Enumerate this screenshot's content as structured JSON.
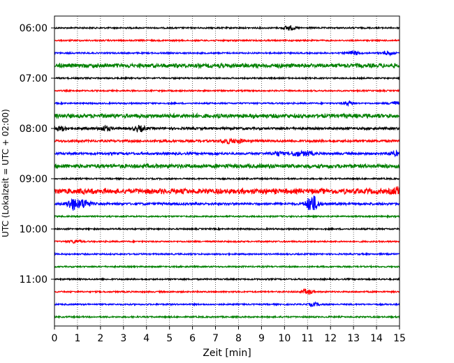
{
  "chart_data": {
    "type": "line",
    "title": "",
    "xlabel": "Zeit  [min]",
    "ylabel": "UTC (Lokalzeit = UTC + 02:00)",
    "xlim": [
      0,
      15
    ],
    "x_ticks": [
      0,
      1,
      2,
      3,
      4,
      5,
      6,
      7,
      8,
      9,
      10,
      11,
      12,
      13,
      14,
      15
    ],
    "x_tick_labels": [
      "0",
      "1",
      "2",
      "3",
      "4",
      "5",
      "6",
      "7",
      "8",
      "9",
      "10",
      "11",
      "12",
      "13",
      "14",
      "15"
    ],
    "y_tick_labels": [
      "06:00",
      "07:00",
      "08:00",
      "09:00",
      "10:00",
      "11:00"
    ],
    "grid": "vertical dotted at each minute",
    "trace_colors": [
      "#000000",
      "#ff0000",
      "#0000ff",
      "#008000"
    ],
    "series": [
      {
        "start": "06:00",
        "color": "#000000",
        "noise": "low",
        "events": [
          [
            10.2,
            0.8
          ]
        ]
      },
      {
        "start": "06:15",
        "color": "#ff0000",
        "noise": "low",
        "events": []
      },
      {
        "start": "06:30",
        "color": "#0000ff",
        "noise": "low",
        "events": [
          [
            13.0,
            0.7
          ],
          [
            14.5,
            0.6
          ]
        ]
      },
      {
        "start": "06:45",
        "color": "#008000",
        "noise": "high",
        "events": []
      },
      {
        "start": "07:00",
        "color": "#000000",
        "noise": "low",
        "events": []
      },
      {
        "start": "07:15",
        "color": "#ff0000",
        "noise": "low",
        "events": []
      },
      {
        "start": "07:30",
        "color": "#0000ff",
        "noise": "low",
        "events": [
          [
            12.8,
            0.6
          ],
          [
            14.8,
            0.6
          ]
        ]
      },
      {
        "start": "07:45",
        "color": "#008000",
        "noise": "high",
        "events": []
      },
      {
        "start": "08:00",
        "color": "#000000",
        "noise": "medium",
        "events": [
          [
            0.3,
            0.7
          ],
          [
            2.2,
            0.8
          ],
          [
            3.7,
            0.9
          ]
        ]
      },
      {
        "start": "08:15",
        "color": "#ff0000",
        "noise": "medium",
        "events": [
          [
            7.5,
            0.7
          ],
          [
            8.0,
            0.6
          ]
        ]
      },
      {
        "start": "08:30",
        "color": "#0000ff",
        "noise": "medium",
        "events": [
          [
            9.7,
            0.7
          ],
          [
            10.5,
            0.8
          ],
          [
            11.0,
            0.7
          ],
          [
            14.8,
            0.6
          ]
        ]
      },
      {
        "start": "08:45",
        "color": "#008000",
        "noise": "high",
        "events": []
      },
      {
        "start": "09:00",
        "color": "#000000",
        "noise": "low",
        "events": []
      },
      {
        "start": "09:15",
        "color": "#ff0000",
        "noise": "very-high",
        "events": [
          [
            15.0,
            1.4
          ]
        ]
      },
      {
        "start": "09:30",
        "color": "#0000ff",
        "noise": "medium",
        "events": [
          [
            0.8,
            2.0
          ],
          [
            1.3,
            1.5
          ],
          [
            11.2,
            3.0
          ]
        ]
      },
      {
        "start": "09:45",
        "color": "#008000",
        "noise": "low",
        "events": []
      },
      {
        "start": "10:00",
        "color": "#000000",
        "noise": "low",
        "events": []
      },
      {
        "start": "10:15",
        "color": "#ff0000",
        "noise": "low",
        "events": [
          [
            0.9,
            0.5
          ]
        ]
      },
      {
        "start": "10:30",
        "color": "#0000ff",
        "noise": "low",
        "events": []
      },
      {
        "start": "10:45",
        "color": "#008000",
        "noise": "low",
        "events": []
      },
      {
        "start": "11:00",
        "color": "#000000",
        "noise": "low",
        "events": []
      },
      {
        "start": "11:15",
        "color": "#ff0000",
        "noise": "low",
        "events": [
          [
            11.0,
            0.8
          ]
        ]
      },
      {
        "start": "11:30",
        "color": "#0000ff",
        "noise": "low",
        "events": [
          [
            11.3,
            0.5
          ]
        ]
      },
      {
        "start": "11:45",
        "color": "#008000",
        "noise": "low",
        "events": []
      }
    ]
  }
}
